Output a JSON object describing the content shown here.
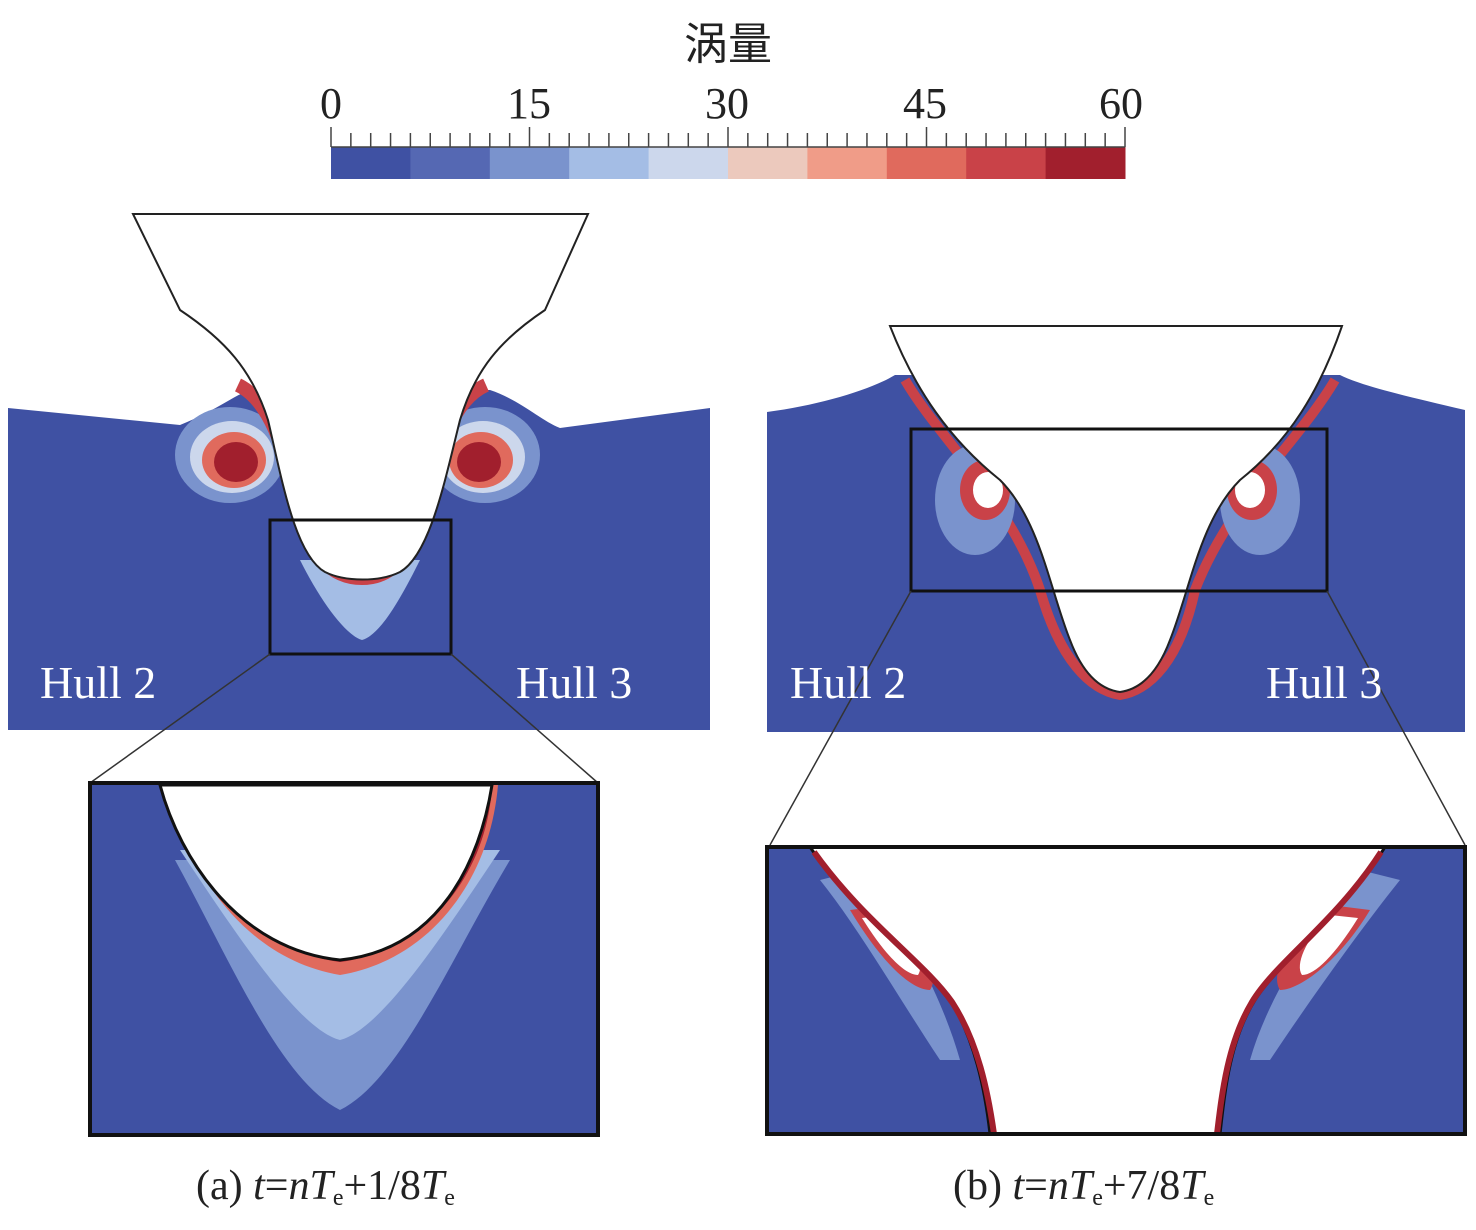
{
  "colorbar": {
    "title": "涡量",
    "ticks": [
      "0",
      "15",
      "30",
      "45",
      "60"
    ],
    "range": [
      0,
      60
    ],
    "colors": [
      "#3f51a3",
      "#5568b3",
      "#7a93cd",
      "#a4bde5",
      "#ccd7ec",
      "#ecc9bd",
      "#f09c88",
      "#e06a5d",
      "#c94248",
      "#a11f2d"
    ]
  },
  "panels": {
    "a": {
      "hull_left": "Hull 2",
      "hull_right": "Hull 3",
      "caption_prefix": "(a) ",
      "caption_t": "t",
      "caption_eq": "=",
      "caption_n": "n",
      "caption_T1": "T",
      "caption_sub1": "e",
      "caption_mid": "+1/8",
      "caption_T2": "T",
      "caption_sub2": "e"
    },
    "b": {
      "hull_left": "Hull 2",
      "hull_right": "Hull 3",
      "caption_prefix": "(b) ",
      "caption_t": "t",
      "caption_eq": "=",
      "caption_n": "n",
      "caption_T1": "T",
      "caption_sub1": "e",
      "caption_mid": "+7/8",
      "caption_T2": "T",
      "caption_sub2": "e"
    }
  },
  "fluid_color": "#3f51a3",
  "vortex_core_color": "#a11f2d"
}
